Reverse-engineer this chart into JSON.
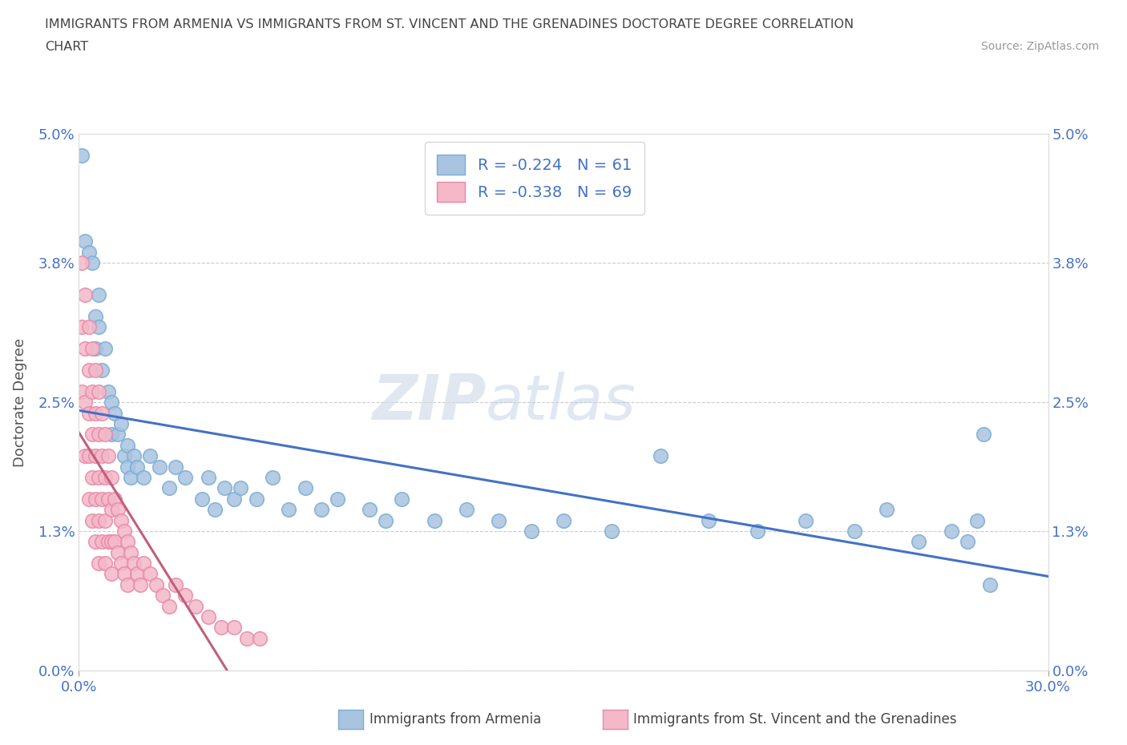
{
  "title_line1": "IMMIGRANTS FROM ARMENIA VS IMMIGRANTS FROM ST. VINCENT AND THE GRENADINES DOCTORATE DEGREE CORRELATION",
  "title_line2": "CHART",
  "source": "Source: ZipAtlas.com",
  "ylabel": "Doctorate Degree",
  "xmin": 0.0,
  "xmax": 0.3,
  "ymin": 0.0,
  "ymax": 0.05,
  "yticks": [
    0.0,
    0.013,
    0.025,
    0.038,
    0.05
  ],
  "ytick_labels": [
    "0.0%",
    "1.3%",
    "2.5%",
    "3.8%",
    "5.0%"
  ],
  "xticks": [
    0.0,
    0.3
  ],
  "xtick_labels": [
    "0.0%",
    "30.0%"
  ],
  "armenia_color": "#a8c4e0",
  "armenia_edge": "#7badd4",
  "svg_color": "#f4b8c8",
  "svg_edge": "#e889a8",
  "line_armenia_color": "#4472c4",
  "line_svg_color": "#c0607a",
  "R_armenia": -0.224,
  "N_armenia": 61,
  "R_svg": -0.338,
  "N_svg": 69,
  "background_color": "#ffffff",
  "armenia_x": [
    0.001,
    0.002,
    0.003,
    0.004,
    0.005,
    0.005,
    0.006,
    0.006,
    0.007,
    0.008,
    0.009,
    0.01,
    0.01,
    0.011,
    0.012,
    0.013,
    0.014,
    0.015,
    0.015,
    0.016,
    0.017,
    0.018,
    0.02,
    0.022,
    0.025,
    0.028,
    0.03,
    0.033,
    0.038,
    0.04,
    0.042,
    0.045,
    0.048,
    0.05,
    0.055,
    0.06,
    0.065,
    0.07,
    0.075,
    0.08,
    0.09,
    0.095,
    0.1,
    0.11,
    0.12,
    0.13,
    0.14,
    0.15,
    0.165,
    0.18,
    0.195,
    0.21,
    0.225,
    0.24,
    0.25,
    0.26,
    0.27,
    0.275,
    0.278,
    0.28,
    0.282
  ],
  "armenia_y": [
    0.048,
    0.04,
    0.039,
    0.038,
    0.033,
    0.03,
    0.035,
    0.032,
    0.028,
    0.03,
    0.026,
    0.025,
    0.022,
    0.024,
    0.022,
    0.023,
    0.02,
    0.021,
    0.019,
    0.018,
    0.02,
    0.019,
    0.018,
    0.02,
    0.019,
    0.017,
    0.019,
    0.018,
    0.016,
    0.018,
    0.015,
    0.017,
    0.016,
    0.017,
    0.016,
    0.018,
    0.015,
    0.017,
    0.015,
    0.016,
    0.015,
    0.014,
    0.016,
    0.014,
    0.015,
    0.014,
    0.013,
    0.014,
    0.013,
    0.02,
    0.014,
    0.013,
    0.014,
    0.013,
    0.015,
    0.012,
    0.013,
    0.012,
    0.014,
    0.022,
    0.008
  ],
  "svg_x": [
    0.001,
    0.001,
    0.001,
    0.002,
    0.002,
    0.002,
    0.002,
    0.003,
    0.003,
    0.003,
    0.003,
    0.003,
    0.004,
    0.004,
    0.004,
    0.004,
    0.004,
    0.005,
    0.005,
    0.005,
    0.005,
    0.005,
    0.006,
    0.006,
    0.006,
    0.006,
    0.006,
    0.007,
    0.007,
    0.007,
    0.007,
    0.008,
    0.008,
    0.008,
    0.008,
    0.009,
    0.009,
    0.009,
    0.01,
    0.01,
    0.01,
    0.01,
    0.011,
    0.011,
    0.012,
    0.012,
    0.013,
    0.013,
    0.014,
    0.014,
    0.015,
    0.015,
    0.016,
    0.017,
    0.018,
    0.019,
    0.02,
    0.022,
    0.024,
    0.026,
    0.028,
    0.03,
    0.033,
    0.036,
    0.04,
    0.044,
    0.048,
    0.052,
    0.056
  ],
  "svg_y": [
    0.038,
    0.032,
    0.026,
    0.035,
    0.03,
    0.025,
    0.02,
    0.032,
    0.028,
    0.024,
    0.02,
    0.016,
    0.03,
    0.026,
    0.022,
    0.018,
    0.014,
    0.028,
    0.024,
    0.02,
    0.016,
    0.012,
    0.026,
    0.022,
    0.018,
    0.014,
    0.01,
    0.024,
    0.02,
    0.016,
    0.012,
    0.022,
    0.018,
    0.014,
    0.01,
    0.02,
    0.016,
    0.012,
    0.018,
    0.015,
    0.012,
    0.009,
    0.016,
    0.012,
    0.015,
    0.011,
    0.014,
    0.01,
    0.013,
    0.009,
    0.012,
    0.008,
    0.011,
    0.01,
    0.009,
    0.008,
    0.01,
    0.009,
    0.008,
    0.007,
    0.006,
    0.008,
    0.007,
    0.006,
    0.005,
    0.004,
    0.004,
    0.003,
    0.003
  ]
}
